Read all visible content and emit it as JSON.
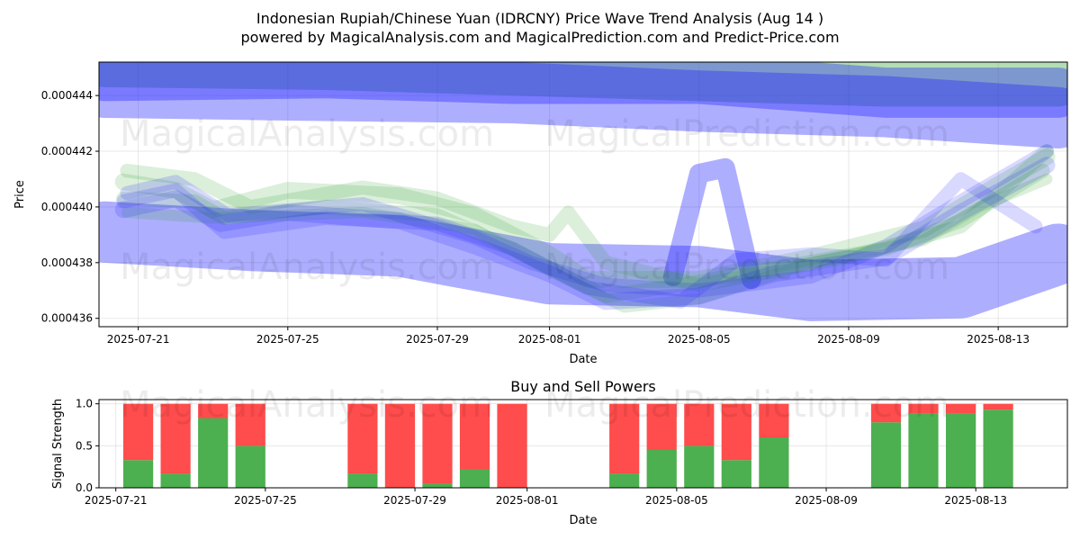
{
  "title": {
    "line1": "Indonesian Rupiah/Chinese Yuan (IDRCNY) Price Wave Trend Analysis (Aug 14 )",
    "line2": "powered by MagicalAnalysis.com and MagicalPrediction.com and Predict-Price.com"
  },
  "watermarks": [
    "MagicalAnalysis.com",
    "MagicalPrediction.com"
  ],
  "colors": {
    "green": "#2ca02c",
    "blue": "#1f1fff",
    "buy": "#4caf50",
    "sell": "#ff4c4c"
  },
  "chart_data": [
    {
      "type": "area",
      "title": "",
      "xlabel": "Date",
      "ylabel": "Price",
      "x_tick_labels": [
        "2025-07-21",
        "2025-07-25",
        "2025-07-29",
        "2025-08-01",
        "2025-08-05",
        "2025-08-09",
        "2025-08-13"
      ],
      "y_tick_labels": [
        "0.000436",
        "0.000438",
        "0.000440",
        "0.000442",
        "0.000444"
      ],
      "ylim": [
        0.0004357,
        0.0004452
      ],
      "x_range_days": [
        -1.05,
        24.85
      ],
      "grid": true,
      "series": [
        {
          "name": "green-top-band",
          "color": "green",
          "kind": "band",
          "width_price": 1.8e-06,
          "points": [
            [
              -0.9,
              0.0004452
            ],
            [
              5,
              0.0004451
            ],
            [
              10,
              0.0004449
            ],
            [
              15,
              0.0004447
            ],
            [
              20,
              0.0004445
            ],
            [
              24.6,
              0.0004445
            ]
          ]
        },
        {
          "name": "blue-top-band-1",
          "color": "blue",
          "kind": "band",
          "width_price": 2.2e-06,
          "points": [
            [
              -0.9,
              0.0004443
            ],
            [
              4,
              0.0004442
            ],
            [
              10,
              0.0004441
            ],
            [
              15,
              0.0004438
            ],
            [
              20,
              0.0004436
            ],
            [
              24.6,
              0.0004432
            ]
          ]
        },
        {
          "name": "blue-top-band-2",
          "color": "blue",
          "kind": "band",
          "width_price": 1.8e-06,
          "points": [
            [
              -0.9,
              0.0004447
            ],
            [
              5,
              0.0004448
            ],
            [
              10,
              0.0004446
            ],
            [
              15,
              0.0004446
            ],
            [
              20,
              0.0004441
            ],
            [
              24.6,
              0.0004441
            ]
          ]
        },
        {
          "name": "blue-low-band",
          "color": "blue",
          "kind": "band",
          "width_price": 2.2e-06,
          "points": [
            [
              -0.9,
              0.0004391
            ],
            [
              3,
              0.0004388
            ],
            [
              7,
              0.0004386
            ],
            [
              11,
              0.0004376
            ],
            [
              15,
              0.0004375
            ],
            [
              18,
              0.000437
            ],
            [
              22,
              0.0004371
            ],
            [
              24.6,
              0.0004383
            ]
          ]
        },
        {
          "name": "blue-spike",
          "color": "blue",
          "kind": "band",
          "width_price": 7e-07,
          "points": [
            [
              14.3,
              0.0004375
            ],
            [
              15,
              0.0004412
            ],
            [
              15.7,
              0.0004414
            ],
            [
              16.4,
              0.0004374
            ]
          ]
        },
        {
          "name": "green-wave-1",
          "color": "green",
          "kind": "line",
          "width_price": 6e-07,
          "points": [
            [
              -0.4,
              0.0004409
            ],
            [
              1,
              0.0004406
            ],
            [
              2,
              0.0004399
            ],
            [
              4,
              0.0004406
            ],
            [
              7,
              0.0004404
            ],
            [
              9,
              0.0004397
            ],
            [
              11,
              0.0004383
            ],
            [
              12,
              0.0004374
            ],
            [
              15,
              0.0004374
            ],
            [
              18,
              0.0004382
            ],
            [
              21,
              0.0004392
            ],
            [
              23,
              0.0004408
            ],
            [
              24.3,
              0.0004418
            ]
          ]
        },
        {
          "name": "green-wave-2",
          "color": "green",
          "kind": "line",
          "width_price": 5e-07,
          "points": [
            [
              -0.4,
              0.0004403
            ],
            [
              1.5,
              0.0004402
            ],
            [
              2.3,
              0.0004396
            ],
            [
              5,
              0.00044
            ],
            [
              8,
              0.0004397
            ],
            [
              10,
              0.0004385
            ],
            [
              12.5,
              0.0004368
            ],
            [
              14.5,
              0.0004372
            ],
            [
              17,
              0.0004378
            ],
            [
              20,
              0.0004385
            ],
            [
              22,
              0.0004395
            ],
            [
              24.2,
              0.0004413
            ]
          ]
        },
        {
          "name": "green-wave-3",
          "color": "green",
          "kind": "line",
          "width_price": 5e-07,
          "points": [
            [
              -0.3,
              0.0004413
            ],
            [
              1.5,
              0.000441
            ],
            [
              3,
              0.00044
            ],
            [
              6,
              0.0004407
            ],
            [
              8,
              0.0004403
            ],
            [
              10,
              0.0004393
            ],
            [
              11,
              0.000439
            ],
            [
              11.5,
              0.0004398
            ],
            [
              12.5,
              0.000438
            ],
            [
              15,
              0.0004372
            ],
            [
              19,
              0.0004382
            ],
            [
              22,
              0.0004393
            ],
            [
              24.3,
              0.000442
            ]
          ]
        },
        {
          "name": "green-wave-4",
          "color": "green",
          "kind": "line",
          "width_price": 4e-07,
          "points": [
            [
              -0.3,
              0.0004398
            ],
            [
              2,
              0.0004396
            ],
            [
              6,
              0.0004398
            ],
            [
              9,
              0.0004392
            ],
            [
              11,
              0.0004377
            ],
            [
              13,
              0.0004364
            ],
            [
              15,
              0.0004367
            ],
            [
              18,
              0.000438
            ],
            [
              21,
              0.0004388
            ],
            [
              22.5,
              0.00044
            ],
            [
              24.3,
              0.000441
            ]
          ]
        },
        {
          "name": "blue-wave-1",
          "color": "blue",
          "kind": "line",
          "width_price": 6e-07,
          "points": [
            [
              -0.4,
              0.0004399
            ],
            [
              1,
              0.0004403
            ],
            [
              2.2,
              0.0004394
            ],
            [
              4,
              0.0004398
            ],
            [
              7,
              0.0004395
            ],
            [
              9,
              0.0004386
            ],
            [
              11,
              0.0004376
            ],
            [
              12.5,
              0.0004366
            ],
            [
              15,
              0.0004368
            ],
            [
              17,
              0.0004376
            ],
            [
              20,
              0.0004382
            ],
            [
              22,
              0.0004398
            ],
            [
              24.3,
              0.0004415
            ]
          ]
        },
        {
          "name": "blue-wave-2",
          "color": "blue",
          "kind": "line",
          "width_price": 5e-07,
          "points": [
            [
              -0.4,
              0.0004402
            ],
            [
              1,
              0.0004406
            ],
            [
              2.3,
              0.0004391
            ],
            [
              5,
              0.0004396
            ],
            [
              8,
              0.0004394
            ],
            [
              10,
              0.0004385
            ],
            [
              12,
              0.0004371
            ],
            [
              14.5,
              0.0004366
            ],
            [
              16,
              0.0004381
            ],
            [
              18,
              0.0004383
            ],
            [
              20,
              0.0004381
            ],
            [
              22,
              0.000441
            ],
            [
              24,
              0.0004393
            ]
          ]
        },
        {
          "name": "blue-wave-3",
          "color": "blue",
          "kind": "line",
          "width_price": 5e-07,
          "points": [
            [
              -0.3,
              0.0004405
            ],
            [
              1,
              0.0004409
            ],
            [
              2.4,
              0.0004397
            ],
            [
              6,
              0.0004401
            ],
            [
              9,
              0.0004389
            ],
            [
              10.5,
              0.000438
            ],
            [
              12.5,
              0.0004372
            ],
            [
              15,
              0.000437
            ],
            [
              18,
              0.0004375
            ],
            [
              20,
              0.0004386
            ],
            [
              22,
              0.0004402
            ],
            [
              24.3,
              0.000442
            ]
          ]
        }
      ]
    },
    {
      "type": "bar",
      "title": "Buy and Sell Powers",
      "xlabel": "Date",
      "ylabel": "Signal Strength",
      "x_tick_labels": [
        "2025-07-21",
        "2025-07-25",
        "2025-07-29",
        "2025-08-01",
        "2025-08-05",
        "2025-08-09",
        "2025-08-13"
      ],
      "y_tick_labels": [
        "0.0",
        "0.5",
        "1.0"
      ],
      "ylim": [
        0,
        1.05
      ],
      "x_range_days": [
        -1.05,
        24.85
      ],
      "days": [
        0,
        1,
        2,
        3,
        6,
        7,
        8,
        9,
        10,
        13,
        14,
        15,
        16,
        17,
        20,
        21,
        22,
        23
      ],
      "series": [
        {
          "name": "Buy",
          "color": "buy",
          "values": [
            0.33,
            0.17,
            0.83,
            0.5,
            0.17,
            0.0,
            0.05,
            0.22,
            0.0,
            0.17,
            0.45,
            0.5,
            0.33,
            0.6,
            0.78,
            0.88,
            0.88,
            0.93
          ]
        },
        {
          "name": "Sell",
          "color": "sell",
          "values": [
            0.67,
            0.83,
            0.17,
            0.5,
            0.83,
            1.0,
            0.95,
            0.78,
            1.0,
            0.83,
            0.55,
            0.5,
            0.67,
            0.4,
            0.22,
            0.12,
            0.12,
            0.07
          ]
        }
      ]
    }
  ]
}
